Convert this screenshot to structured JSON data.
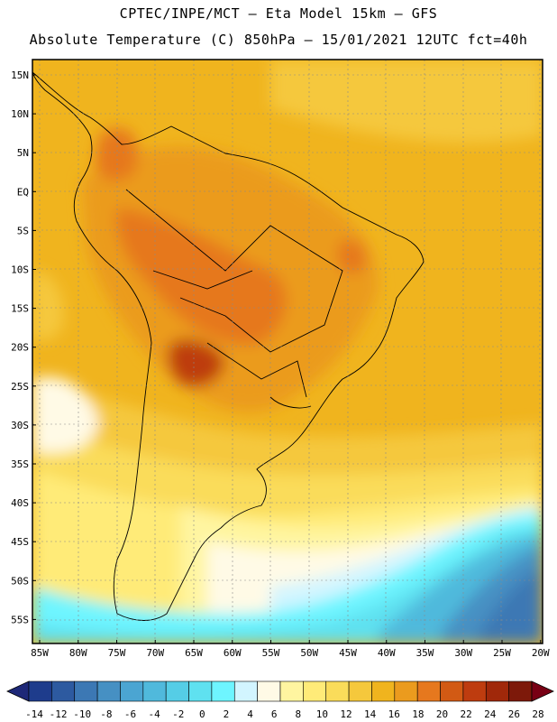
{
  "header": {
    "line1": "CPTEC/INPE/MCT –  Eta Model 15km – GFS",
    "line2": "Absolute Temperature (C) 850hPa – 15/01/2021 12UTC fct=40h"
  },
  "axes": {
    "lat_labels": [
      "15N",
      "10N",
      "5N",
      "EQ",
      "5S",
      "10S",
      "15S",
      "20S",
      "25S",
      "30S",
      "35S",
      "40S",
      "45S",
      "50S",
      "55S"
    ],
    "lon_labels": [
      "85W",
      "80W",
      "75W",
      "70W",
      "65W",
      "60W",
      "55W",
      "50W",
      "45W",
      "40W",
      "35W",
      "30W",
      "25W",
      "20W"
    ]
  },
  "colorbar": {
    "labels": [
      "-14",
      "-12",
      "-10",
      "-8",
      "-6",
      "-4",
      "-2",
      "0",
      "2",
      "4",
      "6",
      "8",
      "10",
      "12",
      "14",
      "16",
      "18",
      "20",
      "22",
      "24",
      "26",
      "28"
    ],
    "colors": [
      "#1e3c8c",
      "#2d5aa0",
      "#3c78b4",
      "#4690c3",
      "#4ba5d2",
      "#50b9dc",
      "#55cde6",
      "#5fe1f0",
      "#6ef5ff",
      "#d2f5ff",
      "#fffae6",
      "#fff5a0",
      "#ffeb78",
      "#fadc5a",
      "#f5c83c",
      "#f0b41e",
      "#eb9b1e",
      "#e6781e",
      "#d25a14",
      "#be3c0f",
      "#a0280a",
      "#7d190a"
    ],
    "under_color": "#1e2878",
    "over_color": "#780014"
  }
}
